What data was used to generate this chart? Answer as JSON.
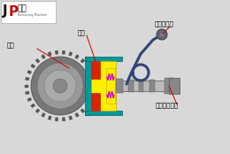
{
  "bg_color": "#e8e8e8",
  "labels": {
    "flywheel": "飞轮",
    "pressure_plate": "压盘",
    "clutch_plate": "离合器压板",
    "transmission_shaft": "变速箱输出轴"
  },
  "colors": {
    "bg": "#d8d8d8",
    "flywheel_dark": "#555555",
    "flywheel_mid": "#888888",
    "flywheel_light": "#aaaaaa",
    "teal": "#009999",
    "teal_dark": "#006666",
    "yellow": "#ffee00",
    "yellow_dark": "#ccaa00",
    "red": "#dd2200",
    "magenta": "#cc00cc",
    "shaft_light": "#bbbbbb",
    "shaft_mid": "#888888",
    "shaft_dark": "#555555",
    "fork_color": "#334477",
    "clutch_disc_color": "#555566",
    "line_color": "#cc0000",
    "white": "#ffffff",
    "black": "#000000"
  },
  "logo": {
    "j_color": "#111111",
    "p_color": "#cc0000",
    "text_color": "#111111",
    "sub_color": "#555555"
  }
}
